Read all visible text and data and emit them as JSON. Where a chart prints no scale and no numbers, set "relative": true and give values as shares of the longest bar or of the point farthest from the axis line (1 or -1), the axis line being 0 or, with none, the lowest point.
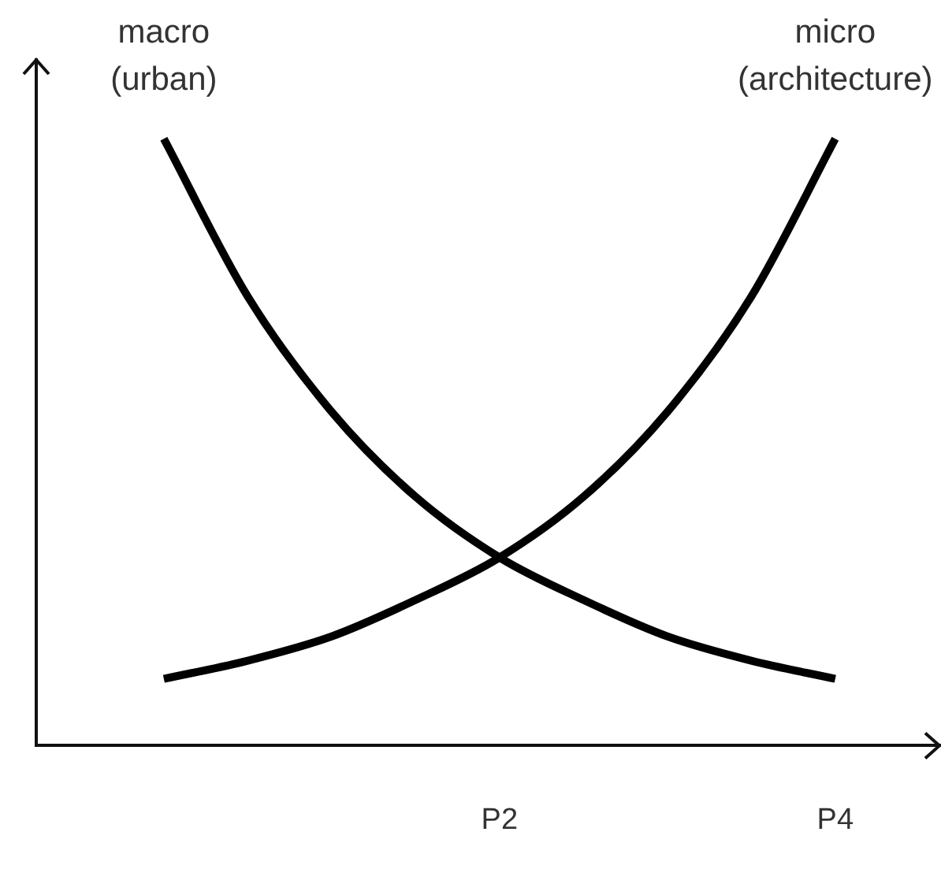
{
  "chart_data": {
    "type": "line",
    "relative": true,
    "categories": [
      null,
      null,
      null,
      null,
      "P2",
      null,
      null,
      null,
      "P4"
    ],
    "tick_labels": "x",
    "grid": false,
    "marker": "none",
    "series": [
      {
        "name": "macro (urban)",
        "color": "#000000",
        "values": [
          1.0,
          0.74,
          0.55,
          0.41,
          0.31,
          0.24,
          0.18,
          0.14,
          0.11
        ]
      },
      {
        "name": "micro (architecture)",
        "color": "#000000",
        "values": [
          0.11,
          0.14,
          0.18,
          0.24,
          0.31,
          0.41,
          0.55,
          0.74,
          1.0
        ]
      }
    ]
  }
}
